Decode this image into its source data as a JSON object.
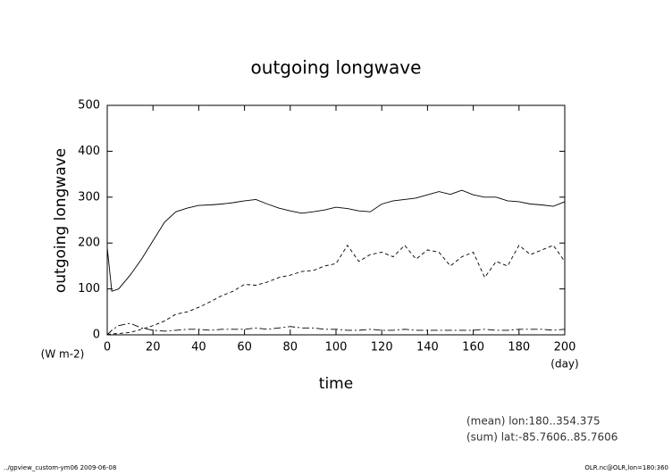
{
  "chart_data": {
    "type": "line",
    "title": "outgoing longwave",
    "ylabel": "outgoing longwave",
    "yunit": "(W m-2)",
    "xlabel": "time",
    "xunit": "(day)",
    "annotations": [
      "(mean) lon:180..354.375",
      "(sum) lat:-85.7606..85.7606"
    ],
    "footer_left": "../gpview_custom-ym06  2009-06-08",
    "footer_right": "OLR.nc@OLR,lon=180:360",
    "x": [
      0,
      2,
      5,
      10,
      15,
      20,
      25,
      30,
      35,
      40,
      45,
      50,
      55,
      60,
      65,
      70,
      75,
      80,
      85,
      90,
      95,
      100,
      105,
      110,
      115,
      120,
      125,
      130,
      135,
      140,
      145,
      150,
      155,
      160,
      165,
      170,
      175,
      180,
      185,
      190,
      195,
      200
    ],
    "series": [
      {
        "color": "#000000",
        "style": "solid",
        "values": [
          190,
          95,
          100,
          130,
          165,
          205,
          245,
          268,
          276,
          282,
          283,
          285,
          288,
          292,
          295,
          285,
          276,
          270,
          265,
          268,
          272,
          278,
          275,
          270,
          268,
          285,
          292,
          295,
          298,
          305,
          312,
          306,
          315,
          305,
          300,
          300,
          292,
          290,
          285,
          283,
          280,
          290
        ]
      },
      {
        "color": "#000000",
        "style": "dashed",
        "values": [
          0,
          2,
          3,
          5,
          12,
          20,
          30,
          45,
          50,
          60,
          72,
          85,
          95,
          110,
          108,
          115,
          125,
          130,
          138,
          140,
          150,
          155,
          195,
          160,
          175,
          180,
          170,
          195,
          165,
          185,
          180,
          150,
          170,
          180,
          125,
          160,
          150,
          195,
          175,
          185,
          195,
          160
        ]
      },
      {
        "color": "#000000",
        "style": "dashdot",
        "values": [
          0,
          10,
          20,
          25,
          15,
          10,
          8,
          10,
          12,
          12,
          10,
          12,
          12,
          12,
          15,
          12,
          15,
          18,
          15,
          15,
          12,
          12,
          10,
          10,
          12,
          10,
          10,
          12,
          10,
          10,
          10,
          10,
          10,
          10,
          12,
          10,
          10,
          12,
          12,
          12,
          10,
          12
        ]
      }
    ],
    "xlim": [
      0,
      200
    ],
    "xticks": [
      0,
      20,
      40,
      60,
      80,
      100,
      120,
      140,
      160,
      180,
      200
    ],
    "ylim": [
      0,
      500
    ],
    "yticks": [
      0,
      100,
      200,
      300,
      400,
      500
    ]
  }
}
